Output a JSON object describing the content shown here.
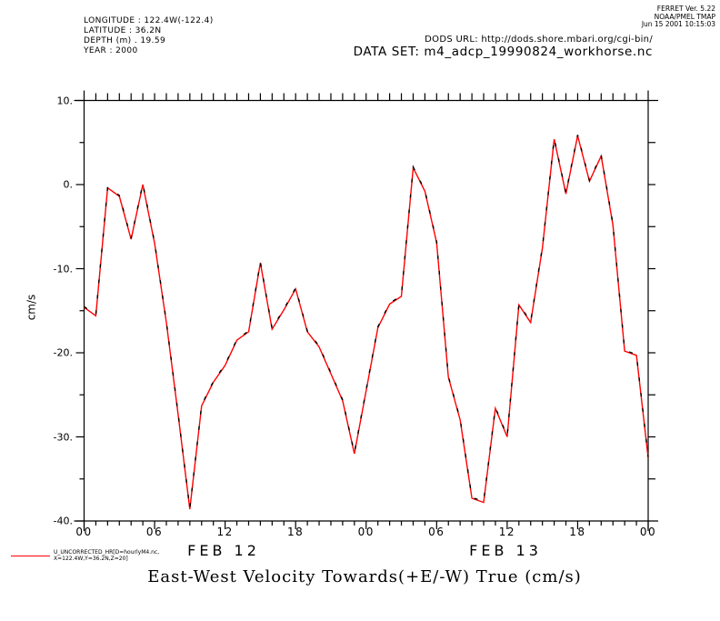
{
  "header": {
    "meta_lines": [
      "LONGITUDE : 122.4W(-122.4)",
      "LATITUDE : 36.2N",
      "DEPTH (m) . 19.59",
      "YEAR : 2000"
    ],
    "ferret_lines": [
      "FERRET Ver. 5.22",
      "NOAA/PMEL TMAP",
      "Jun 15 2001 10:15:03"
    ],
    "dods_url": "DODS URL: http://dods.shore.mbari.org/cgi-bin/",
    "dataset": "DATA SET: m4_adcp_19990824_workhorse.nc"
  },
  "legend": {
    "line_color": "#ff0000",
    "label_line1": "U_UNCORRECTED_HR[D=hourlyM4.nc,",
    "label_line2": "X=122.4W,Y=36.2N,Z=20]"
  },
  "chart_data": {
    "type": "line",
    "title": "East-West Velocity Towards(+E/-W) True (cm/s)",
    "ylabel": "cm/s",
    "ylim": [
      -40,
      10
    ],
    "y_major_ticks": [
      10,
      0,
      -10,
      -20,
      -30,
      -40
    ],
    "y_tick_labels": [
      "10.",
      "0.",
      "-10.",
      "-20.",
      "-30.",
      "-40."
    ],
    "y_minor_step": 5,
    "x_hours_range": [
      0,
      48
    ],
    "x_minor_step_hours": 1,
    "x_major_tick_hours": [
      0,
      6,
      12,
      18,
      24,
      30,
      36,
      42,
      48
    ],
    "x_tick_labels": [
      "00",
      "06",
      "12",
      "18",
      "00",
      "06",
      "12",
      "18",
      "00"
    ],
    "day_labels": [
      {
        "label": "FEB 12",
        "hour": 12
      },
      {
        "label": "FEB 13",
        "hour": 36
      }
    ],
    "grid": false,
    "legend_position": "bottom-left",
    "series": [
      {
        "name": "U_UNCORRECTED_HR (red)",
        "color": "#ff0000",
        "style": "solid",
        "x_start_hour": 0,
        "x_step_hours": 1,
        "values": [
          -14.6,
          -15.6,
          -0.4,
          -1.4,
          -6.5,
          0.0,
          -7.0,
          -16.4,
          -27.3,
          -38.6,
          -26.3,
          -23.5,
          -21.5,
          -18.5,
          -17.5,
          -9.3,
          -17.2,
          -14.9,
          -12.4,
          -17.5,
          -19.3,
          -22.5,
          -25.7,
          -32.0,
          -24.5,
          -17.0,
          -14.2,
          -13.3,
          2.0,
          -0.8,
          -6.9,
          -22.9,
          -28.0,
          -37.3,
          -37.8,
          -26.6,
          -30.0,
          -14.3,
          -16.4,
          -7.5,
          5.4,
          -1.1,
          5.8,
          0.4,
          3.4,
          -4.8,
          -19.8,
          -20.3,
          -32.5
        ]
      },
      {
        "name": "U_UNCORRECTED_HR (coincident black trace)",
        "color": "#000000",
        "style": "dashed",
        "x_start_hour": 0,
        "x_step_hours": 1,
        "values": [
          -14.6,
          -15.6,
          -0.4,
          -1.4,
          -6.5,
          0.0,
          -7.0,
          -16.4,
          -27.3,
          -38.6,
          -26.3,
          -23.5,
          -21.5,
          -18.5,
          -17.5,
          -9.3,
          -17.2,
          -14.9,
          -12.4,
          -17.5,
          -19.3,
          -22.5,
          -25.7,
          -32.0,
          -24.5,
          -17.0,
          -14.2,
          -13.3,
          2.0,
          -0.8,
          -6.9,
          -22.9,
          -28.0,
          -37.3,
          -37.8,
          -26.6,
          -30.0,
          -14.3,
          -16.4,
          -7.5,
          5.4,
          -1.1,
          5.8,
          0.4,
          3.4,
          -4.8,
          -19.8,
          -20.3,
          -32.5
        ]
      }
    ]
  }
}
